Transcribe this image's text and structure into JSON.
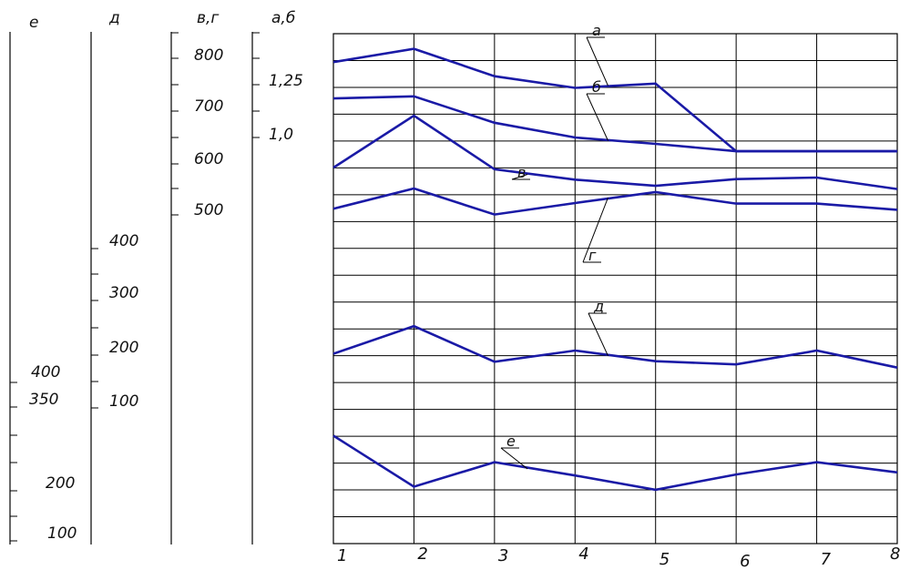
{
  "chart_data": {
    "type": "line",
    "x": [
      "1",
      "2",
      "3",
      "4",
      "5",
      "6",
      "7",
      "8"
    ],
    "axes": [
      {
        "name": "е",
        "ticks": [
          "400",
          "350",
          "200",
          "100"
        ]
      },
      {
        "name": "д",
        "ticks": [
          "400",
          "300",
          "200",
          "100"
        ]
      },
      {
        "name": "в,г",
        "ticks": [
          "800",
          "700",
          "600",
          "500"
        ]
      },
      {
        "name": "а,б",
        "ticks": [
          "1,25",
          "1,0"
        ]
      }
    ],
    "series": [
      {
        "name": "а",
        "axis": "а,б",
        "values": [
          1.357,
          1.42,
          1.29,
          1.235,
          1.255,
          0.935,
          0.935,
          0.935
        ]
      },
      {
        "name": "б",
        "axis": "а,б",
        "values": [
          1.185,
          1.195,
          1.07,
          1.0,
          0.97,
          0.935,
          0.935,
          0.935
        ]
      },
      {
        "name": "в",
        "axis": "в,г",
        "values": [
          540,
          640,
          537,
          517,
          505,
          518,
          521,
          499
        ]
      },
      {
        "name": "г",
        "axis": "в,г",
        "values": [
          461,
          500,
          450,
          472,
          493,
          471,
          471,
          459
        ]
      },
      {
        "name": "д",
        "axis": "д",
        "values": [
          202,
          254,
          187,
          208,
          188,
          182,
          208,
          176
        ]
      },
      {
        "name": "е",
        "axis": "е",
        "values": [
          308,
          208,
          256,
          230,
          202,
          232,
          256,
          236
        ]
      }
    ],
    "grid": true,
    "color": "#1a1aa6"
  }
}
